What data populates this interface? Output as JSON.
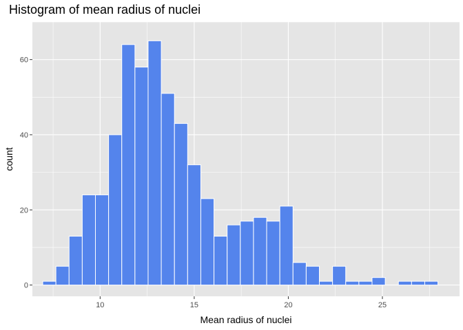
{
  "chart_data": {
    "type": "bar",
    "subtype": "histogram",
    "title": "Histogram of mean radius of nuclei",
    "xlabel": "Mean radius of nuclei",
    "ylabel": "count",
    "xlim": [
      6.4,
      29.1
    ],
    "ylim": [
      -3,
      70
    ],
    "x_ticks": [
      10,
      15,
      20,
      25
    ],
    "y_ticks": [
      0,
      20,
      40,
      60
    ],
    "grid": true,
    "bin_width": 0.7,
    "bin_start": 6.95,
    "counts": [
      1,
      5,
      13,
      24,
      24,
      40,
      64,
      58,
      65,
      51,
      43,
      32,
      23,
      13,
      16,
      17,
      18,
      17,
      21,
      6,
      5,
      1,
      5,
      1,
      1,
      2,
      0,
      1,
      1,
      1
    ],
    "colors": {
      "fill": "#5484EC",
      "bar_outline": "#ffffff",
      "panel_background": "#E5E5E5",
      "grid": "#ffffff"
    }
  }
}
